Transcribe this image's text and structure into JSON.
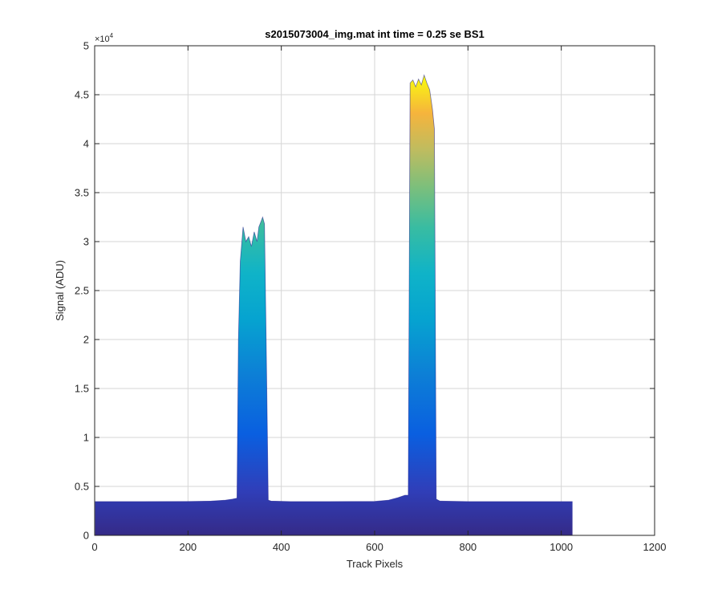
{
  "chart_data": {
    "type": "area",
    "title": "s2015073004_img.mat int time = 0.25 se   BS1",
    "xlabel": "Track Pixels",
    "ylabel": "Signal (ADU)",
    "xlim": [
      0,
      1200
    ],
    "ylim": [
      0,
      50000
    ],
    "xticks": [
      0,
      200,
      400,
      600,
      800,
      1000,
      1200
    ],
    "xtick_labels": [
      "0",
      "200",
      "400",
      "600",
      "800",
      "1000",
      "1200"
    ],
    "yticks": [
      0,
      5000,
      10000,
      15000,
      20000,
      25000,
      30000,
      35000,
      40000,
      45000,
      50000
    ],
    "ytick_labels": [
      "0",
      "0.5",
      "1",
      "1.5",
      "2",
      "2.5",
      "3",
      "3.5",
      "4",
      "4.5",
      "5"
    ],
    "y_multiplier": "×10",
    "y_multiplier_exp": "4",
    "grid": true,
    "colormap": "parula",
    "colors": {
      "colormap_low": "#352a87",
      "colormap_mid": "#0fb3c8",
      "colormap_high": "#f9fb0e",
      "baseline": "#1f1f8f",
      "axis": "#262626",
      "grid": "#d6d6d6"
    },
    "series": [
      {
        "x": [
          1,
          100,
          200,
          250,
          280,
          295,
          305,
          308,
          312,
          318,
          324,
          330,
          336,
          342,
          348,
          352,
          356,
          360,
          364,
          368,
          372,
          378,
          420,
          500,
          600,
          630,
          650,
          665,
          672,
          676,
          682,
          688,
          694,
          700,
          706,
          712,
          718,
          724,
          728,
          732,
          740,
          800,
          900,
          1024
        ],
        "values": [
          3450,
          3450,
          3460,
          3500,
          3600,
          3700,
          3800,
          20000,
          28000,
          31500,
          30000,
          30500,
          29500,
          31000,
          30000,
          31500,
          32000,
          32500,
          31800,
          18000,
          3600,
          3500,
          3450,
          3450,
          3470,
          3600,
          3850,
          4100,
          4100,
          46200,
          46500,
          45800,
          46600,
          46000,
          47000,
          46200,
          45500,
          43500,
          41500,
          3700,
          3500,
          3450,
          3450,
          3450
        ]
      }
    ]
  }
}
